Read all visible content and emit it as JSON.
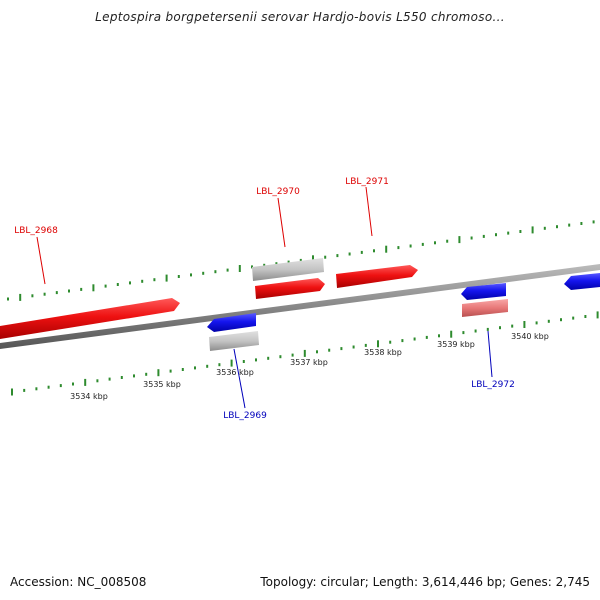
{
  "title": "Leptospira borgpetersenii serovar Hardjo-bovis L550 chromoso...",
  "footer": {
    "accession": "Accession: NC_008508",
    "summary": "Topology: circular; Length: 3,614,446 bp; Genes: 2,745"
  },
  "colors": {
    "forward": "#ee1111",
    "reverse": "#1515ee",
    "other": "#c0c0c0",
    "pink": "#e87878",
    "backbone": "#888888",
    "ticks": "#2e8b2e"
  },
  "scale_labels": [
    {
      "label": "3534 kbp"
    },
    {
      "label": "3535 kbp"
    },
    {
      "label": "3536 kbp"
    },
    {
      "label": "3537 kbp"
    },
    {
      "label": "3538 kbp"
    },
    {
      "label": "3539 kbp"
    },
    {
      "label": "3540 kbp"
    }
  ],
  "gene_labels": [
    {
      "text": "LBL_2968",
      "strand": "forward"
    },
    {
      "text": "LBL_2970",
      "strand": "forward"
    },
    {
      "text": "LBL_2971",
      "strand": "forward"
    },
    {
      "text": "LBL_2969",
      "strand": "reverse"
    },
    {
      "text": "LBL_2972",
      "strand": "reverse"
    }
  ]
}
